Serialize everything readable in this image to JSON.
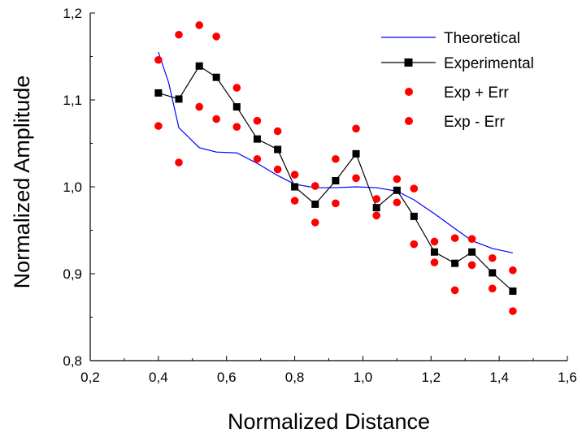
{
  "chart_data": {
    "type": "scatter",
    "title": "",
    "xlabel": "Normalized Distance",
    "ylabel": "Normalized Amplitude",
    "xlim": [
      0.2,
      1.6
    ],
    "ylim": [
      0.8,
      1.2
    ],
    "xticks": [
      0.2,
      0.4,
      0.6,
      0.8,
      1.0,
      1.2,
      1.4,
      1.6
    ],
    "yticks": [
      0.8,
      0.9,
      1.0,
      1.1,
      1.2
    ],
    "xtick_labels": [
      "0,2",
      "0,4",
      "0,6",
      "0,8",
      "1,0",
      "1,2",
      "1,4",
      "1,6"
    ],
    "ytick_labels": [
      "0,8",
      "0,9",
      "1,0",
      "1,1",
      "1,2"
    ],
    "grid": false,
    "legend_position": "top-right",
    "series": [
      {
        "name": "Theoretical",
        "style": "line",
        "color": "#0000ff",
        "x": [
          0.4,
          0.43,
          0.46,
          0.52,
          0.57,
          0.63,
          0.69,
          0.75,
          0.8,
          0.86,
          0.92,
          0.98,
          1.04,
          1.1,
          1.15,
          1.21,
          1.27,
          1.32,
          1.38,
          1.44
        ],
        "y": [
          1.155,
          1.12,
          1.068,
          1.045,
          1.04,
          1.039,
          1.027,
          1.013,
          1.003,
          0.999,
          0.999,
          1.0,
          0.999,
          0.995,
          0.985,
          0.969,
          0.952,
          0.938,
          0.929,
          0.924
        ]
      },
      {
        "name": "Experimental",
        "style": "line-marker-square",
        "color": "#000000",
        "x": [
          0.4,
          0.46,
          0.52,
          0.57,
          0.63,
          0.69,
          0.75,
          0.8,
          0.86,
          0.92,
          0.98,
          1.04,
          1.1,
          1.15,
          1.21,
          1.27,
          1.32,
          1.38,
          1.44
        ],
        "y": [
          1.108,
          1.101,
          1.139,
          1.126,
          1.092,
          1.055,
          1.043,
          1.0,
          0.98,
          1.007,
          1.038,
          0.976,
          0.996,
          0.966,
          0.925,
          0.912,
          0.925,
          0.901,
          0.88
        ]
      },
      {
        "name": "Exp + Err",
        "style": "marker-circle",
        "color": "#ff0000",
        "x": [
          0.4,
          0.46,
          0.52,
          0.57,
          0.63,
          0.69,
          0.75,
          0.8,
          0.86,
          0.92,
          0.98,
          1.04,
          1.1,
          1.15,
          1.21,
          1.27,
          1.32,
          1.38,
          1.44
        ],
        "y": [
          1.146,
          1.175,
          1.186,
          1.173,
          1.114,
          1.076,
          1.064,
          1.014,
          1.001,
          1.032,
          1.067,
          0.986,
          1.009,
          0.998,
          0.937,
          0.941,
          0.94,
          0.918,
          0.904
        ]
      },
      {
        "name": "Exp  - Err",
        "style": "marker-circle",
        "color": "#ff0000",
        "x": [
          0.4,
          0.46,
          0.52,
          0.57,
          0.63,
          0.69,
          0.75,
          0.8,
          0.86,
          0.92,
          0.98,
          1.04,
          1.1,
          1.15,
          1.21,
          1.27,
          1.32,
          1.38,
          1.44
        ],
        "y": [
          1.07,
          1.028,
          1.092,
          1.078,
          1.069,
          1.032,
          1.02,
          0.984,
          0.959,
          0.981,
          1.01,
          0.967,
          0.982,
          0.934,
          0.913,
          0.881,
          0.91,
          0.883,
          0.857
        ]
      }
    ]
  }
}
